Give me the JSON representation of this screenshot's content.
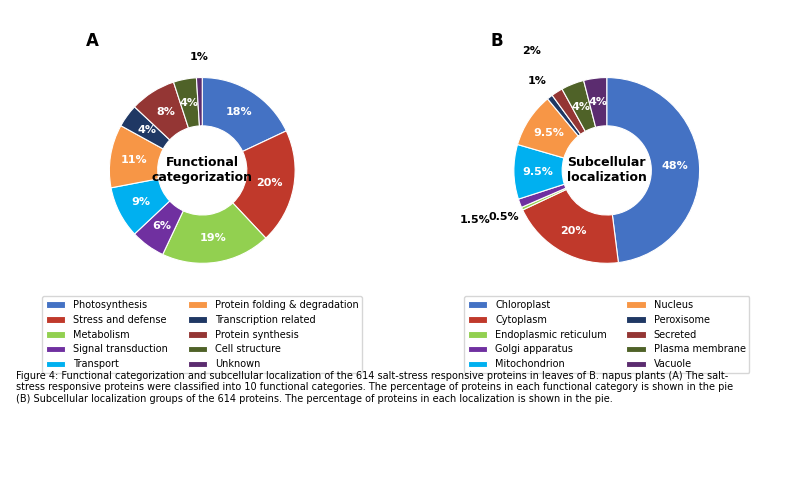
{
  "chart_data": [
    {
      "type": "pie",
      "title": "Functional\ncategorization",
      "annotations": [
        "A"
      ],
      "categories": [
        "Photosynthesis",
        "Stress and defense",
        "Metabolism",
        "Signal transduction",
        "Transport",
        "Protein folding & degradation",
        "Transcription related",
        "Protein synthesis",
        "Cell structure",
        "Unknown"
      ],
      "values": [
        18,
        20,
        19,
        6,
        9,
        11,
        4,
        8,
        4,
        1
      ],
      "value_labels": [
        "18%",
        "20%",
        "19%",
        "6%",
        "9%",
        "11%",
        "4%",
        "8%",
        "4%",
        "1%"
      ],
      "colors": [
        "#4472C4",
        "#C0392B",
        "#92D050",
        "#7030A0",
        "#00B0F0",
        "#F79646",
        "#1F3864",
        "#943634",
        "#4F6228",
        "#5B2C6F"
      ],
      "data_labels": true,
      "legend": "upper center"
    },
    {
      "type": "pie",
      "title": "Subcellular\nlocalization",
      "annotations": [
        "B"
      ],
      "categories": [
        "Chloroplast",
        "Cytoplasm",
        "Endoplasmic reticulum",
        "Golgi apparatus",
        "Mitochondrion",
        "Nucleus",
        "Peroxisome",
        "Secreted",
        "Plasma membrane",
        "Vacuole"
      ],
      "values": [
        48,
        20,
        0.5,
        1.5,
        9.5,
        9.5,
        1,
        2,
        4,
        4
      ],
      "value_labels": [
        "48%",
        "20%",
        "0.5%",
        "1.5%",
        "9.5%",
        "9.5%",
        "1%",
        "2%",
        "4%",
        "4%"
      ],
      "colors": [
        "#4472C4",
        "#C0392B",
        "#92D050",
        "#7030A0",
        "#00B0F0",
        "#F79646",
        "#1F3864",
        "#943634",
        "#4F6228",
        "#5B2C6F"
      ],
      "data_labels": true,
      "legend": "upper center"
    }
  ],
  "caption": "Figure 4: Functional categorization and subcellular localization of the 614 salt-stress responsive proteins in leaves of B. napus plants (A) The salt-\nstress responsive proteins were classified into 10 functional categories. The percentage of proteins in each functional category is shown in the pie\n(B) Subcellular localization groups of the 614 proteins. The percentage of proteins in each localization is shown in the pie."
}
